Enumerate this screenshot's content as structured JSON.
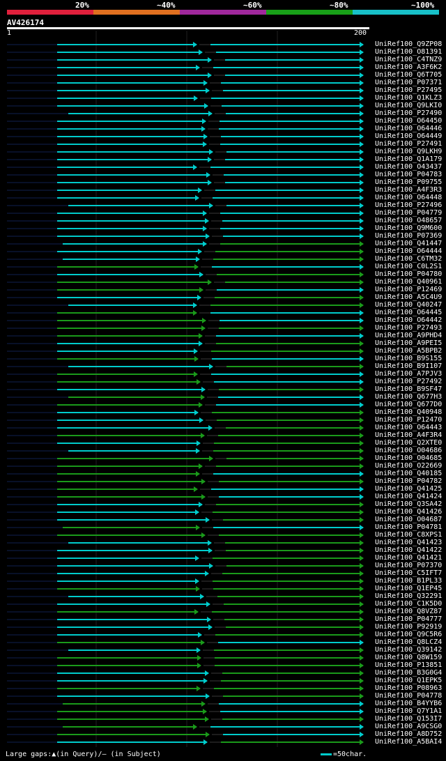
{
  "legend": {
    "segments": [
      {
        "label": "20%",
        "color": "#e0203c"
      },
      {
        "label": "~40%",
        "color": "#e07020"
      },
      {
        "label": "~60%",
        "color": "#a0289c"
      },
      {
        "label": "~80%",
        "color": "#18a018"
      },
      {
        "label": "~100%",
        "color": "#18c0c8"
      }
    ]
  },
  "query": {
    "name": "AV426174",
    "start": "1",
    "end": "200"
  },
  "colors": {
    "cyan": "#00cccc",
    "green": "#1a9a1a",
    "navy": "#102050",
    "gapline": "#3a3a3a"
  },
  "hits": [
    "UniRef100_Q9ZP08",
    "UniRef100_O81391",
    "UniRef100_C4TNZ9",
    "UniRef100_A3F6K2",
    "UniRef100_Q6T705",
    "UniRef100_P07371",
    "UniRef100_P27495",
    "UniRef100_Q1KLZ3",
    "UniRef100_Q9LKI0",
    "UniRef100_P27490",
    "UniRef100_O64450",
    "UniRef100_O64446",
    "UniRef100_O64449",
    "UniRef100_P27491",
    "UniRef100_Q9LKH9",
    "UniRef100_Q1A179",
    "UniRef100_O43437",
    "UniRef100_P04783",
    "UniRef100_P09755",
    "UniRef100_A4F3R3",
    "UniRef100_O64448",
    "UniRef100_P27496",
    "UniRef100_P04779",
    "UniRef100_O48657",
    "UniRef100_Q9M600",
    "UniRef100_P07369",
    "UniRef100_Q41447",
    "UniRef100_O64444",
    "UniRef100_C6TM32",
    "UniRef100_C0L2S1",
    "UniRef100_P04780",
    "UniRef100_Q40961",
    "UniRef100_P12469",
    "UniRef100_A5C4U9",
    "UniRef100_Q40247",
    "UniRef100_O64445",
    "UniRef100_O64442",
    "UniRef100_P27493",
    "UniRef100_A9PHD4",
    "UniRef100_A9PEI5",
    "UniRef100_A5BPB2",
    "UniRef100_B9S155",
    "UniRef100_B9I107",
    "UniRef100_A7PJV3",
    "UniRef100_P27492",
    "UniRef100_B9SF47",
    "UniRef100_Q677H3",
    "UniRef100_Q677D0",
    "UniRef100_Q40948",
    "UniRef100_P12470",
    "UniRef100_O64443",
    "UniRef100_A4F3R4",
    "UniRef100_Q2XTE0",
    "UniRef100_O04686",
    "UniRef100_O04685",
    "UniRef100_O22669",
    "UniRef100_Q40185",
    "UniRef100_P04782",
    "UniRef100_Q41425",
    "UniRef100_Q41424",
    "UniRef100_Q3SA42",
    "UniRef100_Q41426",
    "UniRef100_O04687",
    "UniRef100_P04781",
    "UniRef100_C8XPS1",
    "UniRef100_Q41423",
    "UniRef100_Q41422",
    "UniRef100_Q41421",
    "UniRef100_P07370",
    "UniRef100_C5IFT7",
    "UniRef100_B1PL33",
    "UniRef100_Q1EP45",
    "UniRef100_Q32291",
    "UniRef100_C1K5D0",
    "UniRef100_Q8VZ87",
    "UniRef100_P04777",
    "UniRef100_P92919",
    "UniRef100_Q9C5R6",
    "UniRef100_Q8LCZ4",
    "UniRef100_Q39142",
    "UniRef100_Q8W159",
    "UniRef100_P13851",
    "UniRef100_B3G0G4",
    "UniRef100_Q1EPK5",
    "UniRef100_P08963",
    "UniRef100_P04778",
    "UniRef100_B4YYB6",
    "UniRef100_Q7Y1A1",
    "UniRef100_Q153I7",
    "UniRef100_A9CSG0",
    "UniRef100_A8D752",
    "UniRef100_A5BAI4"
  ],
  "footer": {
    "gaps": "Large gaps:▲(in Query)/– (in Subject)",
    "scale": "=50char."
  }
}
